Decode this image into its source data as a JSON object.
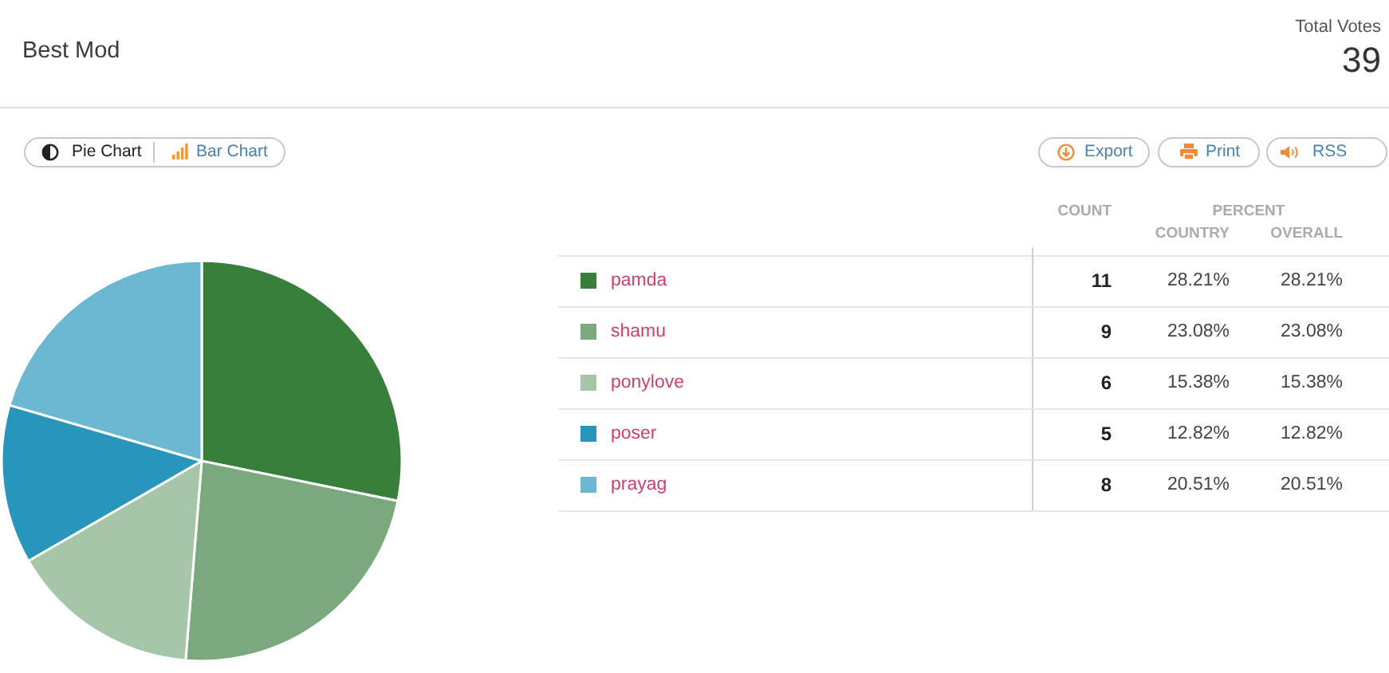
{
  "chart_data": {
    "type": "pie",
    "title": "Best Mod",
    "categories": [
      "pamda",
      "shamu",
      "ponylove",
      "poser",
      "prayag"
    ],
    "values": [
      11,
      9,
      6,
      5,
      8
    ],
    "colors": [
      "#387f3c",
      "#7aa97d",
      "#a6c6a9",
      "#2896ba",
      "#6db8d1"
    ],
    "data_labels": true,
    "legend": "right",
    "annotations": [
      "Total Votes",
      "39",
      "Pie Chart",
      "Bar Chart",
      "Export",
      "Print",
      "RSS",
      "COUNT",
      "PERCENT",
      "COUNTRY",
      "OVERALL",
      "28.21%",
      "23.08%",
      "15.38%",
      "12.82%",
      "20.51%",
      "28.21%",
      "23.08%",
      "15.38%",
      "12.82%",
      "20.51%"
    ]
  }
}
